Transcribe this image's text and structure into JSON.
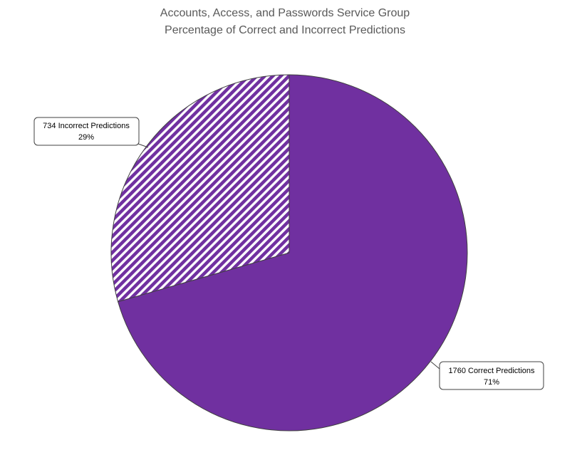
{
  "chart_data": {
    "type": "pie",
    "title": "Accounts, Access, and Passwords Service Group",
    "subtitle": "Percentage of Correct and Incorrect Predictions",
    "slices": [
      {
        "label": "Correct Predictions",
        "value": 1760,
        "percent": "71%",
        "fill": "solid"
      },
      {
        "label": "Incorrect Predictions",
        "value": 734,
        "percent": "29%",
        "fill": "hatched"
      }
    ],
    "labels": {
      "correct_line1": "1760 Correct Predictions",
      "correct_line2": "71%",
      "incorrect_line1": "734 Incorrect Predictions",
      "incorrect_line2": "29%"
    },
    "start_angle_deg": 0,
    "direction": "clockwise",
    "colors": {
      "primary": "#7030A0",
      "hatch": "#7030A0",
      "background": "#FFFFFF",
      "outline": "#404040"
    }
  }
}
